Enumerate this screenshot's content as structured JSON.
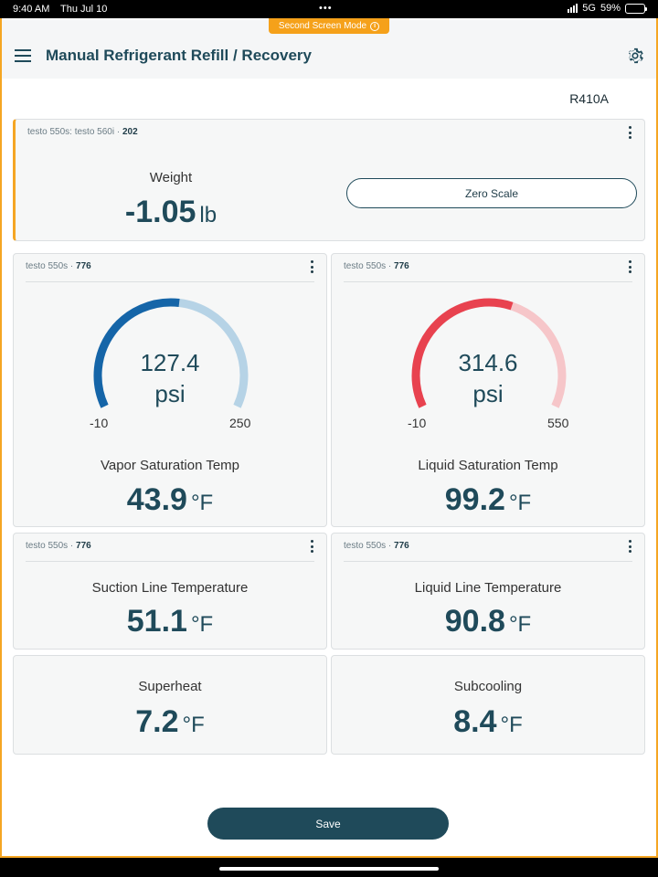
{
  "status_bar": {
    "time": "9:40 AM",
    "date": "Thu Jul 10",
    "network": "5G",
    "battery": "59%",
    "battery_level": 0.59
  },
  "mode_banner": {
    "label": "Second Screen Mode"
  },
  "header": {
    "title": "Manual Refrigerant Refill / Recovery"
  },
  "refrigerant": "R410A",
  "weight_card": {
    "probe_name": "testo 550s: testo 560i",
    "probe_id": "202",
    "label": "Weight",
    "value": "-1.05",
    "unit": "lb",
    "zero_button": "Zero Scale"
  },
  "vapor_card": {
    "probe_name": "testo 550s",
    "probe_id": "776",
    "pressure": "127.4",
    "pressure_unit": "psi",
    "min": "-10",
    "max": "250",
    "label": "Vapor Saturation Temp",
    "value": "43.9",
    "unit": "°F",
    "color_active": "#1565a8",
    "color_track": "#b6d3e6"
  },
  "liquid_card": {
    "probe_name": "testo 550s",
    "probe_id": "776",
    "pressure": "314.6",
    "pressure_unit": "psi",
    "min": "-10",
    "max": "550",
    "label": "Liquid Saturation Temp",
    "value": "99.2",
    "unit": "°F",
    "color_active": "#e8424f",
    "color_track": "#f6c6c9"
  },
  "suction_card": {
    "probe_name": "testo 550s",
    "probe_id": "776",
    "label": "Suction Line Temperature",
    "value": "51.1",
    "unit": "°F"
  },
  "liquid_line_card": {
    "probe_name": "testo 550s",
    "probe_id": "776",
    "label": "Liquid Line Temperature",
    "value": "90.8",
    "unit": "°F"
  },
  "superheat_card": {
    "label": "Superheat",
    "value": "7.2",
    "unit": "°F"
  },
  "subcooling_card": {
    "label": "Subcooling",
    "value": "8.4",
    "unit": "°F"
  },
  "save_button": "Save"
}
